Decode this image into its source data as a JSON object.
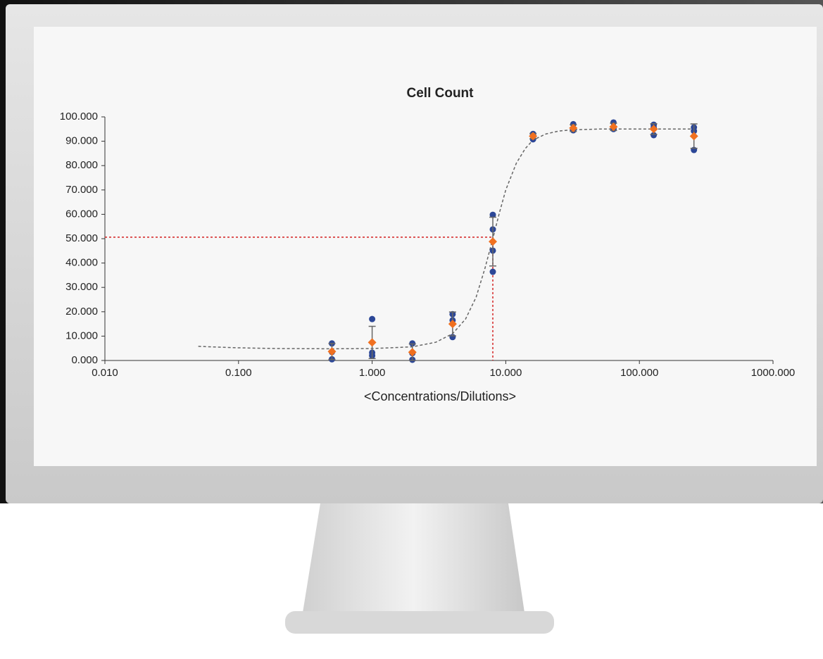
{
  "chart_data": {
    "type": "scatter",
    "title": "Cell Count",
    "x_label": "<Concentrations/Dilutions>",
    "xscale": "log",
    "xlim": [
      0.01,
      1000
    ],
    "xticks": [
      {
        "value": 0.01,
        "label": "0.010"
      },
      {
        "value": 0.1,
        "label": "0.100"
      },
      {
        "value": 1,
        "label": "1.000"
      },
      {
        "value": 10,
        "label": "10.000"
      },
      {
        "value": 100,
        "label": "100.000"
      },
      {
        "value": 1000,
        "label": "1000.000"
      }
    ],
    "ylim": [
      0,
      100
    ],
    "yticks": [
      {
        "value": 0,
        "label": "0.000"
      },
      {
        "value": 10,
        "label": "10.000"
      },
      {
        "value": 20,
        "label": "20.000"
      },
      {
        "value": 30,
        "label": "30.000"
      },
      {
        "value": 40,
        "label": "40.000"
      },
      {
        "value": 50,
        "label": "50.000"
      },
      {
        "value": 60,
        "label": "60.000"
      },
      {
        "value": 70,
        "label": "70.000"
      },
      {
        "value": 80,
        "label": "80.000"
      },
      {
        "value": 90,
        "label": "90.000"
      },
      {
        "value": 100,
        "label": "100.000"
      }
    ],
    "series": [
      {
        "type": "scatter",
        "marker": "circle",
        "color": "#2c4797",
        "x": [
          0.5,
          0.5,
          0.5,
          1,
          1,
          1,
          2,
          2,
          2,
          4,
          4,
          4,
          8,
          8,
          8,
          8,
          16,
          16,
          16,
          32,
          32,
          32,
          64,
          64,
          64,
          128,
          128,
          128,
          256,
          256,
          256
        ],
        "values": [
          7,
          3.5,
          0.5,
          17,
          3.2,
          2.0,
          7,
          3,
          0.3,
          19,
          16.5,
          9.6,
          59.8,
          53.8,
          45.1,
          36.4,
          93,
          92.5,
          90.8,
          97,
          94.5,
          94.7,
          97.7,
          95.1,
          95.0,
          96.8,
          95.7,
          92.5,
          95.7,
          94.2,
          86.4
        ]
      },
      {
        "type": "scatter",
        "marker": "diamond",
        "color": "#f07020",
        "error_color": "#666666",
        "x": [
          0.5,
          1,
          2,
          4,
          8,
          16,
          32,
          64,
          128,
          256
        ],
        "values": [
          3.7,
          7.4,
          3.4,
          15.0,
          48.8,
          92.1,
          95.4,
          95.9,
          95.0,
          92.1
        ],
        "errors": [
          3.3,
          6.6,
          3.4,
          4.9,
          10,
          1.1,
          1.4,
          1.5,
          2.2,
          5
        ]
      },
      {
        "type": "line",
        "style": "dashed",
        "color": "#666666",
        "x": [
          0.05,
          0.1,
          0.2,
          0.5,
          1,
          2,
          3,
          4,
          5,
          6,
          7,
          8,
          9,
          10,
          12,
          14,
          16,
          20,
          25,
          32,
          50,
          100,
          256
        ],
        "values": [
          5.8,
          5.2,
          4.9,
          4.8,
          4.9,
          5.6,
          7.5,
          11,
          17,
          26,
          38,
          50,
          61,
          70,
          81,
          87,
          90.5,
          93,
          94.2,
          94.7,
          95,
          95,
          95
        ]
      }
    ],
    "reference": {
      "x": 8,
      "y": 50.6,
      "color": "#d42020"
    }
  }
}
